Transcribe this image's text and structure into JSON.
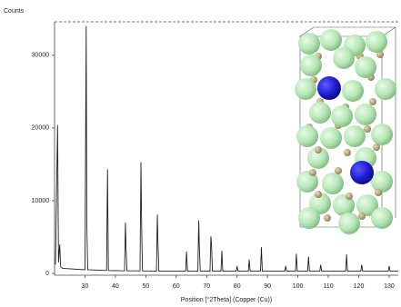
{
  "chart_data": {
    "type": "line",
    "y_label": "Counts",
    "x_label": "Position [°2Theta] (Copper (Cu))",
    "color": "#222222",
    "xlim": [
      20,
      133
    ],
    "ylim": [
      0,
      34600
    ],
    "xticks": [
      30,
      40,
      50,
      60,
      70,
      80,
      90,
      100,
      110,
      120,
      130
    ],
    "yticks": [
      0,
      10000,
      20000,
      30000
    ],
    "x": [
      20.3,
      21.0,
      21.3,
      21.7,
      22.0,
      22.6,
      30.0,
      30.4,
      30.6,
      30.9,
      37.1,
      37.4,
      37.7,
      43.0,
      43.3,
      43.5,
      43.8,
      48.1,
      48.4,
      48.6,
      48.9,
      53.5,
      53.8,
      54.0,
      54.3,
      63.1,
      63.4,
      63.7,
      67.1,
      67.4,
      67.6,
      67.9,
      71.1,
      71.4,
      71.6,
      71.9,
      74.7,
      75.0,
      75.3,
      79.7,
      80.0,
      80.3,
      83.7,
      84.0,
      84.3,
      87.7,
      88.0,
      88.3,
      95.7,
      96.0,
      96.3,
      99.2,
      99.5,
      99.8,
      103.2,
      103.5,
      103.8,
      107.2,
      107.5,
      107.8,
      115.7,
      116.0,
      116.3,
      120.7,
      121.0,
      121.3,
      129.7,
      130.0,
      130.3,
      133
    ],
    "values": [
      1200,
      20400,
      1500,
      4000,
      900,
      700,
      500,
      34000,
      6800,
      500,
      400,
      14300,
      400,
      350,
      7000,
      3500,
      350,
      350,
      15300,
      7600,
      350,
      300,
      8100,
      4200,
      300,
      300,
      3000,
      300,
      300,
      7300,
      3600,
      300,
      300,
      5100,
      4000,
      300,
      300,
      3100,
      300,
      300,
      1000,
      300,
      300,
      1900,
      300,
      300,
      3600,
      300,
      300,
      1000,
      300,
      300,
      2700,
      300,
      300,
      2300,
      300,
      300,
      1200,
      300,
      300,
      2600,
      300,
      300,
      1200,
      300,
      300,
      1000,
      300,
      300
    ]
  }
}
